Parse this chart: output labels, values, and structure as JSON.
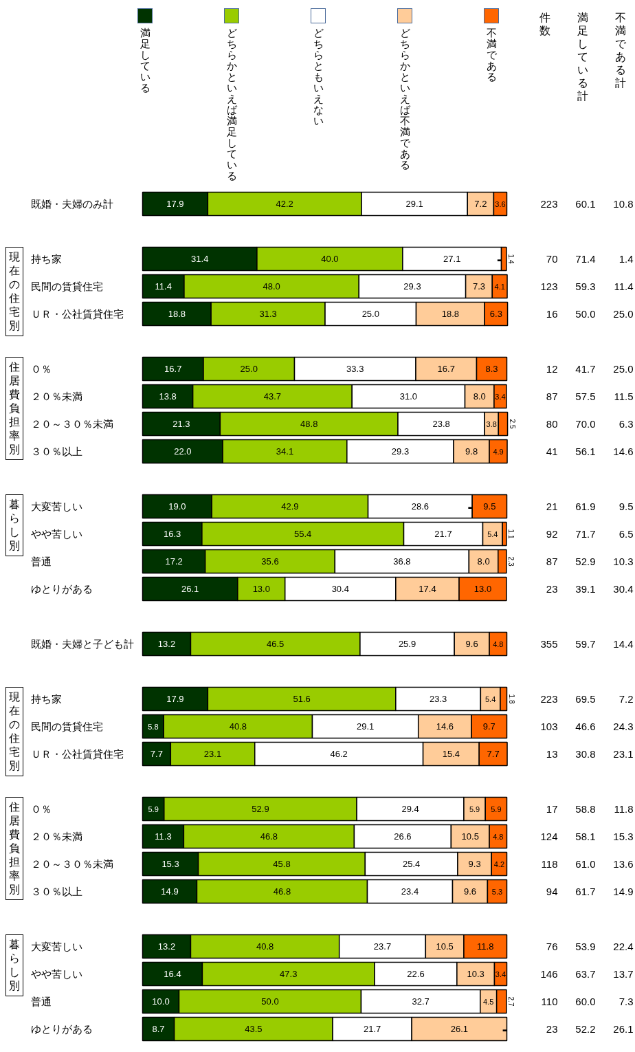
{
  "chart_data": [
    {
      "type": "bar",
      "orientation": "horizontal",
      "stacked": true,
      "legend": "top",
      "tick_labels": "y",
      "categories": [
        "既婚・夫婦のみ計",
        "持ち家",
        "民間の賃貸住宅",
        "ＵＲ・公社賃貸住宅",
        "０％",
        "２０％未満",
        "２０～３０％未満",
        "３０％以上",
        "大変苦しい",
        "やや苦しい",
        "普通",
        "ゆとりがある",
        "既婚・夫婦と子ども計",
        "持ち家",
        "民間の賃貸住宅",
        "ＵＲ・公社賃貸住宅",
        "０％",
        "２０％未満",
        "２０～３０％未満",
        "３０％以上",
        "大変苦しい",
        "やや苦しい",
        "普通",
        "ゆとりがある"
      ],
      "series": [
        {
          "name": "満足している",
          "color": "#003300",
          "values": [
            17.9,
            31.4,
            11.4,
            18.8,
            16.7,
            13.8,
            21.3,
            22.0,
            19.0,
            16.3,
            17.2,
            26.1,
            13.2,
            17.9,
            5.8,
            7.7,
            5.9,
            11.3,
            15.3,
            14.9,
            13.2,
            16.4,
            10.0,
            8.7
          ],
          "value_labels": [
            "17.9",
            "31.4",
            "11.4",
            "18.8",
            "16.7",
            "13.8",
            "21.3",
            "22.0",
            "19.0",
            "16.3",
            "17.2",
            "26.1",
            "13.2",
            "17.9",
            "5.8",
            "7.7",
            "5.9",
            "11.3",
            "15.3",
            "14.9",
            "13.2",
            "16.4",
            "10.0",
            "8.7"
          ]
        },
        {
          "name": "どちらかといえば満足している",
          "color": "#99cc00",
          "values": [
            42.2,
            40.0,
            48.0,
            31.3,
            25.0,
            43.7,
            48.8,
            34.1,
            42.9,
            55.4,
            35.6,
            13.0,
            46.5,
            51.6,
            40.8,
            23.1,
            52.9,
            46.8,
            45.8,
            46.8,
            40.8,
            47.3,
            50.0,
            43.5
          ],
          "value_labels": [
            "42.2",
            "40.0",
            "48.0",
            "31.3",
            "25.0",
            "43.7",
            "48.8",
            "34.1",
            "42.9",
            "55.4",
            "35.6",
            "13.0",
            "46.5",
            "51.6",
            "40.8",
            "23.1",
            "52.9",
            "46.8",
            "45.8",
            "46.8",
            "40.8",
            "47.3",
            "50.0",
            "43.5"
          ]
        },
        {
          "name": "どちらともいえない",
          "color": "#ffffff",
          "values": [
            29.1,
            27.1,
            29.3,
            25.0,
            33.3,
            31.0,
            23.8,
            29.3,
            28.6,
            21.7,
            36.8,
            30.4,
            25.9,
            23.3,
            29.1,
            46.2,
            29.4,
            26.6,
            25.4,
            23.4,
            23.7,
            22.6,
            32.7,
            21.7
          ],
          "value_labels": [
            "29.1",
            "27.1",
            "29.3",
            "25.0",
            "33.3",
            "31.0",
            "23.8",
            "29.3",
            "28.6",
            "21.7",
            "36.8",
            "30.4",
            "25.9",
            "23.3",
            "29.1",
            "46.2",
            "29.4",
            "26.6",
            "25.4",
            "23.4",
            "23.7",
            "22.6",
            "32.7",
            "21.7"
          ]
        },
        {
          "name": "どちらかといえば不満である",
          "color": "#ffcc99",
          "values": [
            7.2,
            0,
            7.3,
            18.8,
            16.7,
            8.0,
            3.8,
            9.8,
            0,
            5.4,
            8.0,
            17.4,
            9.6,
            5.4,
            14.6,
            15.4,
            5.9,
            10.5,
            9.3,
            9.6,
            10.5,
            10.3,
            4.5,
            26.1
          ],
          "value_labels": [
            "7.2",
            "-",
            "7.3",
            "18.8",
            "16.7",
            "8.0",
            "3.8",
            "9.8",
            "-",
            "5.4",
            "8.0",
            "17.4",
            "9.6",
            "5.4",
            "14.6",
            "15.4",
            "5.9",
            "10.5",
            "9.3",
            "9.6",
            "10.5",
            "10.3",
            "4.5",
            "26.1"
          ]
        },
        {
          "name": "不満である",
          "color": "#ff6600",
          "values": [
            3.6,
            1.4,
            4.1,
            6.3,
            8.3,
            3.4,
            2.5,
            4.9,
            9.5,
            1.1,
            2.3,
            13.0,
            4.8,
            1.8,
            9.7,
            7.7,
            5.9,
            4.8,
            4.2,
            5.3,
            11.8,
            3.4,
            2.7,
            0
          ],
          "value_labels": [
            "3.6",
            "1.4",
            "4.1",
            "6.3",
            "8.3",
            "3.4",
            "2.5",
            "4.9",
            "9.5",
            "1.1",
            "2.3",
            "13.0",
            "4.8",
            "1.8",
            "9.7",
            "7.7",
            "5.9",
            "4.8",
            "4.2",
            "5.3",
            "11.8",
            "3.4",
            "2.7",
            "-"
          ]
        }
      ],
      "annotations": [
        "現在の住宅別",
        "住居費負担率別",
        "暮らし別",
        "現在の住宅別",
        "住居費負担率別",
        "暮らし別"
      ]
    },
    {
      "type": "other",
      "annotations": [
        "件数",
        "満足している計",
        "不満である計",
        "223",
        "60.1",
        "10.8",
        "70",
        "71.4",
        "1.4",
        "123",
        "59.3",
        "11.4",
        "16",
        "50.0",
        "25.0",
        "12",
        "41.7",
        "25.0",
        "87",
        "57.5",
        "11.5",
        "80",
        "70.0",
        "6.3",
        "41",
        "56.1",
        "14.6",
        "21",
        "61.9",
        "9.5",
        "92",
        "71.7",
        "6.5",
        "87",
        "52.9",
        "10.3",
        "23",
        "39.1",
        "30.4",
        "355",
        "59.7",
        "14.4",
        "223",
        "69.5",
        "7.2",
        "103",
        "46.6",
        "24.3",
        "13",
        "30.8",
        "23.1",
        "17",
        "58.8",
        "11.8",
        "124",
        "58.1",
        "15.3",
        "118",
        "61.0",
        "13.6",
        "94",
        "61.7",
        "14.9",
        "76",
        "53.9",
        "22.4",
        "146",
        "63.7",
        "13.7",
        "110",
        "60.0",
        "7.3",
        "23",
        "52.2",
        "26.1"
      ]
    }
  ]
}
